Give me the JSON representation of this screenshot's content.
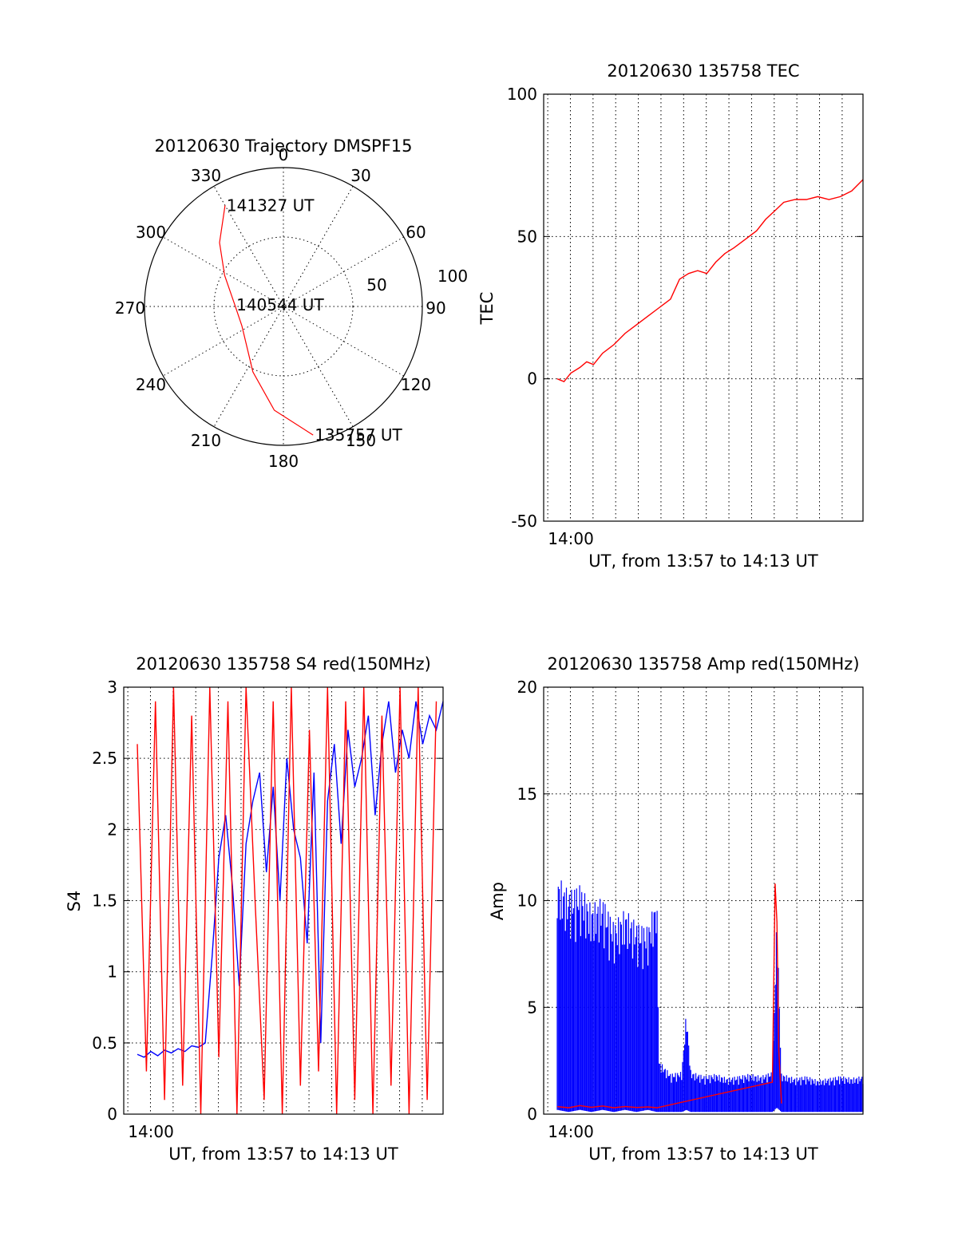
{
  "chart_data": [
    {
      "id": "polar",
      "type": "scatter",
      "title": "20120630 Trajectory DMSPF15",
      "azimuth_labels": [
        "0",
        "30",
        "60",
        "90",
        "120",
        "150",
        "180",
        "210",
        "240",
        "270",
        "300",
        "330"
      ],
      "radial_labels": [
        "50",
        "100"
      ],
      "zenith_rings": [
        50,
        100
      ],
      "r_max": 100,
      "trajectory": {
        "color": "#ff0000",
        "points": [
          {
            "az": 167,
            "r": 95
          },
          {
            "az": 185,
            "r": 75
          },
          {
            "az": 205,
            "r": 52
          },
          {
            "az": 245,
            "r": 33
          },
          {
            "az": 272,
            "r": 35
          },
          {
            "az": 298,
            "r": 48
          },
          {
            "az": 315,
            "r": 65
          },
          {
            "az": 330,
            "r": 84
          }
        ]
      },
      "annotations": [
        {
          "text": "141327 UT",
          "az": 330,
          "r": 84
        },
        {
          "text": "140544 UT",
          "az": 272,
          "r": 35
        },
        {
          "text": "135757 UT",
          "az": 167,
          "r": 95
        }
      ]
    },
    {
      "id": "tec",
      "type": "line",
      "title": "20120630 135758 TEC",
      "xlabel": "UT, from 13:57 to 14:13 UT",
      "ylabel": "TEC",
      "x_tick_label": "14:00",
      "x_tick_value": 3,
      "xlim": [
        2.4,
        16.5
      ],
      "ylim": [
        -50,
        100
      ],
      "yticks": [
        -50,
        0,
        50,
        100
      ],
      "series": [
        {
          "color": "#ff0000",
          "x": [
            3.0,
            3.3,
            3.6,
            4.0,
            4.3,
            4.6,
            5.0,
            5.5,
            6.0,
            6.5,
            7.0,
            7.5,
            8.0,
            8.4,
            8.8,
            9.2,
            9.6,
            10.0,
            10.4,
            10.8,
            11.3,
            11.8,
            12.2,
            12.6,
            13.0,
            13.5,
            14.0,
            14.5,
            15.0,
            15.5,
            16.0,
            16.5
          ],
          "y": [
            0,
            -1,
            2,
            4,
            6,
            5,
            9,
            12,
            16,
            19,
            22,
            25,
            28,
            35,
            37,
            38,
            37,
            41,
            44,
            46,
            49,
            52,
            56,
            59,
            62,
            63,
            63,
            64,
            63,
            64,
            66,
            70
          ]
        }
      ]
    },
    {
      "id": "s4",
      "type": "line",
      "title": "20120630 135758 S4 red(150MHz)",
      "xlabel": "UT, from 13:57 to 14:13 UT",
      "ylabel": "S4",
      "x_tick_label": "14:00",
      "x_tick_value": 3,
      "xlim": [
        2.4,
        16.5
      ],
      "ylim": [
        0,
        3
      ],
      "yticks": [
        0,
        0.5,
        1,
        1.5,
        2,
        2.5,
        3
      ],
      "ytick_labels": [
        "0",
        "0.5",
        "1",
        "1.5",
        "2",
        "2.5",
        "3"
      ],
      "series": [
        {
          "name": "",
          "color": "#0000ff",
          "x": [
            3.0,
            3.3,
            3.6,
            3.9,
            4.2,
            4.5,
            4.8,
            5.1,
            5.4,
            5.7,
            6.0,
            6.3,
            6.6,
            6.9,
            7.2,
            7.5,
            7.8,
            8.1,
            8.4,
            8.7,
            9.0,
            9.3,
            9.6,
            9.9,
            10.2,
            10.5,
            10.8,
            11.1,
            11.4,
            11.7,
            12.0,
            12.3,
            12.6,
            12.9,
            13.2,
            13.5,
            13.8,
            14.1,
            14.4,
            14.7,
            15.0,
            15.3,
            15.6,
            15.9,
            16.2,
            16.5
          ],
          "y": [
            0.42,
            0.4,
            0.44,
            0.41,
            0.45,
            0.43,
            0.46,
            0.44,
            0.48,
            0.47,
            0.5,
            1.1,
            1.8,
            2.1,
            1.6,
            0.9,
            1.9,
            2.2,
            2.4,
            1.7,
            2.3,
            1.5,
            2.5,
            2.0,
            1.8,
            1.2,
            2.4,
            0.5,
            2.2,
            2.6,
            1.9,
            2.7,
            2.3,
            2.5,
            2.8,
            2.1,
            2.6,
            2.9,
            2.4,
            2.7,
            2.5,
            2.9,
            2.6,
            2.8,
            2.7,
            2.9
          ]
        },
        {
          "name": "",
          "color": "#ff0000",
          "x": [
            3.0,
            3.4,
            3.8,
            4.2,
            4.6,
            5.0,
            5.4,
            5.8,
            6.2,
            6.6,
            7.0,
            7.4,
            7.8,
            8.2,
            8.6,
            9.0,
            9.4,
            9.8,
            10.2,
            10.6,
            11.0,
            11.4,
            11.8,
            12.2,
            12.6,
            13.0,
            13.4,
            13.8,
            14.2,
            14.6,
            15.0,
            15.4,
            15.8,
            16.2
          ],
          "y": [
            2.6,
            0.3,
            2.9,
            0.1,
            3.0,
            0.2,
            2.8,
            0.0,
            3.0,
            0.4,
            2.9,
            0.0,
            3.0,
            1.5,
            0.1,
            2.9,
            0.0,
            3.0,
            0.2,
            2.7,
            0.3,
            3.0,
            0.0,
            2.9,
            0.1,
            3.0,
            0.0,
            2.8,
            0.2,
            3.0,
            0.0,
            3.0,
            0.1,
            2.9
          ]
        }
      ]
    },
    {
      "id": "amp",
      "type": "line",
      "title": "20120630 135758 Amp red(150MHz)",
      "xlabel": "UT, from 13:57 to 14:13 UT",
      "ylabel": "Amp",
      "x_tick_label": "14:00",
      "x_tick_value": 3,
      "xlim": [
        2.4,
        16.5
      ],
      "ylim": [
        0,
        20
      ],
      "yticks": [
        0,
        5,
        10,
        15,
        20
      ],
      "series": [
        {
          "name": "",
          "color": "#0000ff",
          "kind": "band",
          "x": [
            3.0,
            3.5,
            4.0,
            4.5,
            5.0,
            5.5,
            6.0,
            6.5,
            7.0,
            7.4,
            7.5,
            8.0,
            8.5,
            8.7,
            8.9,
            9.5,
            10.0,
            10.5,
            11.0,
            11.5,
            12.0,
            12.5,
            12.7,
            12.9,
            13.5,
            14.0,
            14.5,
            15.0,
            15.5,
            16.0,
            16.5
          ],
          "hi": [
            11.2,
            10.5,
            10.8,
            9.8,
            10.2,
            9.0,
            9.6,
            9.0,
            8.8,
            10.3,
            2.5,
            1.9,
            2.0,
            4.9,
            2.0,
            1.8,
            1.9,
            1.7,
            1.8,
            1.9,
            1.8,
            2.0,
            9.5,
            1.9,
            1.7,
            1.8,
            1.6,
            1.7,
            1.8,
            1.7,
            1.8
          ],
          "lo": [
            0.2,
            0.1,
            0.2,
            0.1,
            0.2,
            0.1,
            0.2,
            0.1,
            0.2,
            0.1,
            0.1,
            0.1,
            0.1,
            0.2,
            0.1,
            0.1,
            0.1,
            0.1,
            0.1,
            0.1,
            0.1,
            0.1,
            0.3,
            0.1,
            0.1,
            0.1,
            0.1,
            0.1,
            0.1,
            0.1,
            0.1
          ]
        },
        {
          "name": "",
          "color": "#ff0000",
          "kind": "line",
          "x": [
            3.0,
            3.5,
            4.0,
            4.5,
            5.0,
            5.5,
            6.0,
            6.5,
            7.0,
            7.4,
            12.5,
            12.62,
            12.7,
            12.78,
            12.9
          ],
          "y": [
            0.35,
            0.3,
            0.4,
            0.32,
            0.38,
            0.3,
            0.36,
            0.31,
            0.34,
            0.3,
            1.5,
            10.8,
            9.0,
            3.0,
            0.5
          ]
        }
      ]
    }
  ]
}
